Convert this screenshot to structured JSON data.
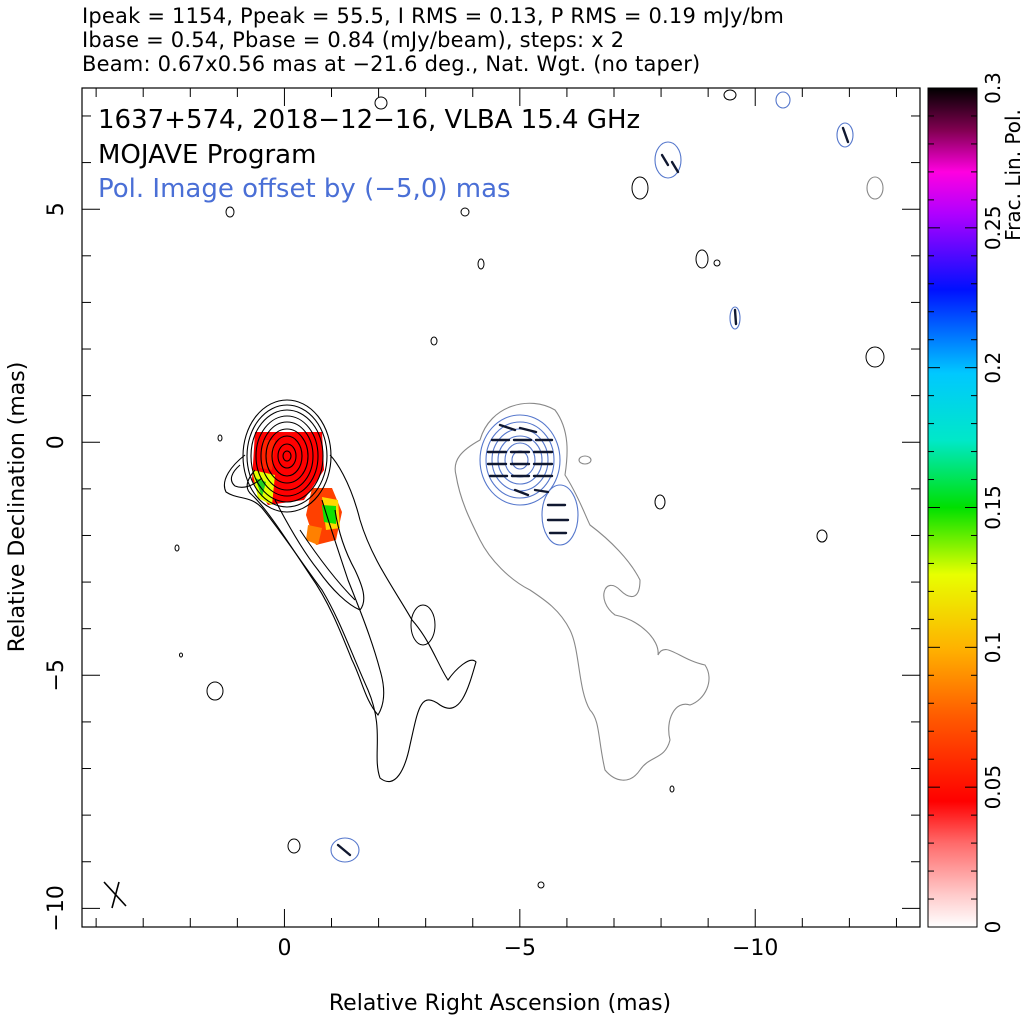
{
  "header": {
    "line1": "Ipeak = 1154, Ppeak = 55.5, I RMS = 0.13, P RMS = 0.19 mJy/bm",
    "line2": "Ibase = 0.54, Pbase = 0.84 (mJy/beam), steps: x 2",
    "line3": "Beam: 0.67x0.56 mas at −21.6 deg., Nat. Wgt. (no taper)"
  },
  "annotations": {
    "source_line": "1637+574, 2018−12−16, VLBA 15.4 GHz",
    "program_line": "MOJAVE Program",
    "offset_line": "Pol. Image offset by (−5,0) mas"
  },
  "colors": {
    "stokes_i_contour": "#000000",
    "pol_contour": "#5577cc",
    "offset_i_contour": "#888888",
    "annotation_blue": "#4a6fd6",
    "evpa_stick": "#101830"
  },
  "chart_data": {
    "type": "contour",
    "xlabel": "Relative Right Ascension (mas)",
    "ylabel": "Relative Declination (mas)",
    "xlim": [
      4.3,
      -13.5
    ],
    "ylim": [
      -10.4,
      7.6
    ],
    "x_ticks": [
      0,
      -5,
      -10
    ],
    "x_tick_labels": [
      "0",
      "−5",
      "−10"
    ],
    "y_ticks": [
      5,
      0,
      -5,
      -10
    ],
    "y_tick_labels": [
      "5",
      "0",
      "−5",
      "−10"
    ],
    "colorbar": {
      "label": "Frac. Lin. Pol.",
      "range": [
        0,
        0.3
      ],
      "ticks": [
        0,
        0.05,
        0.1,
        0.15,
        0.2,
        0.25,
        0.3
      ],
      "tick_labels": [
        "0",
        "0.05",
        "0.1",
        "0.15",
        "0.2",
        "0.25",
        "0.3"
      ]
    },
    "beam": {
      "major_mas": 0.67,
      "minor_mas": 0.56,
      "pa_deg": -21.6
    },
    "peak_position": [
      0,
      0
    ],
    "pol_offset": [
      -5,
      0
    ]
  }
}
